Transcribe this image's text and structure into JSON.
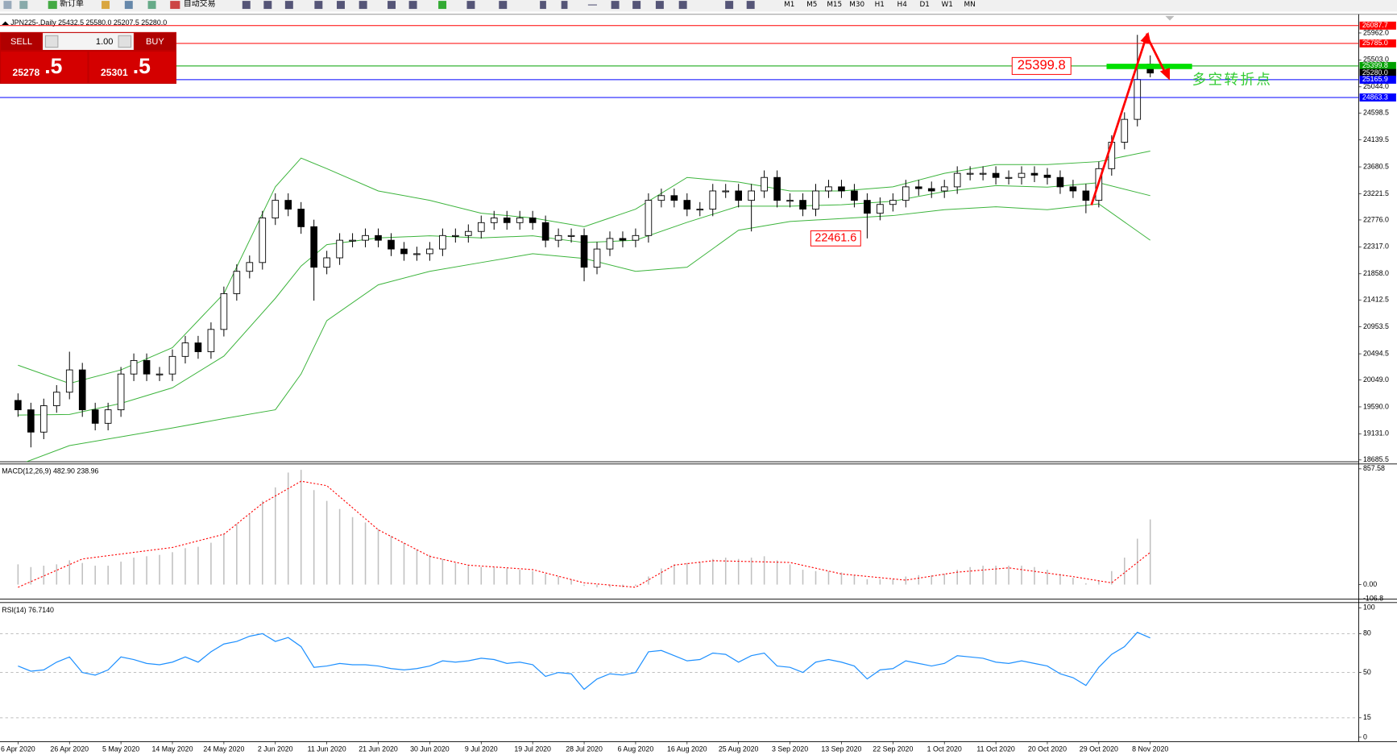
{
  "toolbar": {
    "new_order": "新订单",
    "auto_trading": "自动交易",
    "timeframes": [
      "M1",
      "M5",
      "M15",
      "M30",
      "H1",
      "H4",
      "D1",
      "W1",
      "MN"
    ]
  },
  "trade_panel": {
    "sell": "SELL",
    "buy": "BUY",
    "volume": "1.00",
    "sell_price": [
      "25278",
      ".5"
    ],
    "buy_price": [
      "25301",
      ".5"
    ]
  },
  "chart_data": [
    {
      "type": "candlestick",
      "title": "JPN225-,Daily  25432.5 25580.0 25207.5 25280.0",
      "up_color": "#ffffff",
      "down_color": "#000000",
      "line_color": "#000000",
      "open": [
        19700,
        19540,
        19160,
        19610,
        19840,
        20220,
        19540,
        19310,
        19540,
        20150,
        20380,
        20150,
        20150,
        20450,
        20680,
        20530,
        20910,
        21520,
        21900,
        22050,
        22810,
        23110,
        22960,
        22660,
        21970,
        22130,
        22430,
        22430,
        22510,
        22430,
        22280,
        22200,
        22200,
        22280,
        22510,
        22510,
        22580,
        22730,
        22810,
        22730,
        22810,
        22730,
        22430,
        22510,
        22510,
        21970,
        22280,
        22460,
        22430,
        22510,
        23110,
        23190,
        23110,
        22960,
        22960,
        23270,
        23270,
        23110,
        23270,
        23500,
        23110,
        23110,
        22960,
        23270,
        23340,
        23270,
        23110,
        22890,
        23040,
        23110,
        23340,
        23310,
        23270,
        23340,
        23570,
        23570,
        23570,
        23500,
        23500,
        23570,
        23540,
        23500,
        23340,
        23270,
        23110,
        23650,
        24100,
        24490,
        25432.5
      ],
      "high": [
        19820,
        19660,
        19730,
        19960,
        20530,
        20340,
        19660,
        19660,
        20270,
        20500,
        20500,
        20270,
        20570,
        20800,
        20800,
        21030,
        21640,
        22020,
        22170,
        22930,
        23230,
        23230,
        23080,
        22780,
        22250,
        22550,
        22550,
        22630,
        22630,
        22550,
        22400,
        22320,
        22400,
        22630,
        22630,
        22700,
        22850,
        22930,
        22930,
        22930,
        22930,
        22850,
        22630,
        22630,
        22630,
        22400,
        22580,
        22580,
        22630,
        23230,
        23310,
        23310,
        23230,
        23080,
        23390,
        23390,
        23390,
        23390,
        23620,
        23620,
        23230,
        23230,
        23390,
        23460,
        23460,
        23390,
        23230,
        23160,
        23230,
        23460,
        23460,
        23430,
        23460,
        23690,
        23690,
        23690,
        23690,
        23620,
        23690,
        23690,
        23660,
        23620,
        23460,
        23390,
        23770,
        24220,
        24610,
        25930,
        25580
      ],
      "low": [
        19420,
        18900,
        19040,
        19490,
        19720,
        19420,
        19190,
        19190,
        19420,
        20030,
        20030,
        20030,
        20030,
        20330,
        20410,
        20410,
        20790,
        21400,
        21780,
        21930,
        22690,
        22840,
        22540,
        21400,
        21850,
        22010,
        22310,
        22310,
        22310,
        22160,
        22080,
        22080,
        22080,
        22160,
        22390,
        22390,
        22460,
        22610,
        22610,
        22610,
        22610,
        22310,
        22310,
        22390,
        21730,
        21850,
        22160,
        22310,
        22310,
        22390,
        22990,
        22990,
        22840,
        22840,
        22840,
        23150,
        22990,
        22580,
        23150,
        22990,
        22990,
        22840,
        22840,
        23150,
        23150,
        22990,
        22461.6,
        22770,
        22920,
        22990,
        23190,
        23150,
        23150,
        23220,
        23450,
        23450,
        23380,
        23380,
        23380,
        23420,
        23380,
        23220,
        23150,
        22890,
        22990,
        23530,
        23980,
        24370,
        25207.5
      ],
      "close": [
        19540,
        19160,
        19610,
        19840,
        20220,
        19540,
        19310,
        19540,
        20150,
        20380,
        20150,
        20150,
        20450,
        20680,
        20530,
        20910,
        21520,
        21900,
        22050,
        22810,
        23110,
        22960,
        22660,
        21970,
        22130,
        22430,
        22430,
        22510,
        22430,
        22280,
        22200,
        22200,
        22280,
        22510,
        22510,
        22580,
        22730,
        22810,
        22730,
        22810,
        22730,
        22430,
        22510,
        22510,
        21970,
        22280,
        22460,
        22430,
        22510,
        23110,
        23190,
        23110,
        22960,
        22960,
        23270,
        23270,
        23110,
        23270,
        23500,
        23110,
        23110,
        22960,
        23270,
        23340,
        23270,
        23110,
        22890,
        23040,
        23110,
        23340,
        23310,
        23270,
        23340,
        23570,
        23570,
        23570,
        23500,
        23500,
        23570,
        23540,
        23500,
        23340,
        23270,
        23110,
        23650,
        24100,
        24490,
        25170,
        25280
      ],
      "overlays": [
        {
          "color": "#3cb43c",
          "x": [
            0,
            4,
            8,
            12,
            16,
            20,
            22,
            24,
            28,
            32,
            36,
            40,
            44,
            48,
            52,
            56,
            60,
            64,
            68,
            72,
            76,
            80,
            84,
            88
          ],
          "values": [
            20300,
            19990,
            20220,
            20600,
            21520,
            23340,
            23830,
            23650,
            23270,
            23110,
            22890,
            22810,
            22660,
            22960,
            23500,
            23420,
            23270,
            23270,
            23340,
            23570,
            23720,
            23720,
            23770,
            23950
          ]
        },
        {
          "color": "#3cb43c",
          "x": [
            0,
            4,
            8,
            12,
            16,
            20,
            22,
            24,
            28,
            32,
            36,
            40,
            44,
            48,
            52,
            56,
            60,
            64,
            68,
            72,
            76,
            80,
            84,
            88
          ],
          "values": [
            19450,
            19460,
            19650,
            19915,
            20455,
            21440,
            21990,
            22355,
            22470,
            22505,
            22470,
            22505,
            22390,
            22430,
            22735,
            23010,
            23010,
            23035,
            23095,
            23260,
            23360,
            23335,
            23410,
            23190
          ]
        },
        {
          "color": "#3cb43c",
          "x": [
            0,
            4,
            8,
            12,
            16,
            20,
            22,
            24,
            28,
            32,
            36,
            40,
            44,
            48,
            52,
            56,
            60,
            64,
            68,
            72,
            76,
            80,
            84,
            88
          ],
          "values": [
            18600,
            18930,
            19080,
            19230,
            19390,
            19540,
            20150,
            21060,
            21670,
            21900,
            22050,
            22200,
            22120,
            21900,
            21970,
            22600,
            22750,
            22800,
            22850,
            22950,
            23000,
            22950,
            23050,
            22430
          ]
        }
      ],
      "levels": [
        {
          "value": 26087.7,
          "color": "#ff0000"
        },
        {
          "value": 25785,
          "label": "25785.0",
          "color": "#ff0000"
        },
        {
          "value": 25399.8,
          "color": "#00a000"
        },
        {
          "value": 25280,
          "label": "25280.0",
          "color": "#000000",
          "show_line": false
        },
        {
          "value": 25165.9,
          "color": "#0000ff"
        },
        {
          "value": 24863.3,
          "color": "#0000ff"
        }
      ],
      "annotations": [
        {
          "value": 25399.8
        },
        {
          "value": 22461.6
        },
        {
          "text": "多空转折点"
        }
      ],
      "xlim": [
        -1.4,
        104.2
      ],
      "xticks": [
        {
          "value": 0,
          "label": "6 Apr 2020"
        },
        {
          "value": 4,
          "label": "26 Apr 2020"
        },
        {
          "value": 8,
          "label": "5 May 2020"
        },
        {
          "value": 12,
          "label": "14 May 2020"
        },
        {
          "value": 16,
          "label": "24 May 2020"
        },
        {
          "value": 20,
          "label": "2 Jun 2020"
        },
        {
          "value": 24,
          "label": "11 Jun 2020"
        },
        {
          "value": 28,
          "label": "21 Jun 2020"
        },
        {
          "value": 32,
          "label": "30 Jun 2020"
        },
        {
          "value": 36,
          "label": "9 Jul 2020"
        },
        {
          "value": 40,
          "label": "19 Jul 2020"
        },
        {
          "value": 44,
          "label": "28 Jul 2020"
        },
        {
          "value": 48,
          "label": "6 Aug 2020"
        },
        {
          "value": 52,
          "label": "16 Aug 2020"
        },
        {
          "value": 56,
          "label": "25 Aug 2020"
        },
        {
          "value": 60,
          "label": "3 Sep 2020"
        },
        {
          "value": 64,
          "label": "13 Sep 2020"
        },
        {
          "value": 68,
          "label": "22 Sep 2020"
        },
        {
          "value": 72,
          "label": "1 Oct 2020"
        },
        {
          "value": 76,
          "label": "11 Oct 2020"
        },
        {
          "value": 80,
          "label": "20 Oct 2020"
        },
        {
          "value": 84,
          "label": "29 Oct 2020"
        },
        {
          "value": 88,
          "label": "8 Nov 2020"
        }
      ],
      "ylim": [
        18655,
        26266
      ],
      "yticks": [
        {
          "value": 25962,
          "label": "25962.0"
        },
        {
          "value": 25503,
          "label": "25503.0"
        },
        {
          "value": 25044,
          "label": "25044.0"
        },
        24598.5,
        24139.5,
        23680.5,
        23221.5,
        {
          "value": 22776,
          "label": "22776.0"
        },
        {
          "value": 22317,
          "label": "22317.0"
        },
        {
          "value": 21858,
          "label": "21858.0"
        },
        21412.5,
        20953.5,
        20494.5,
        {
          "value": 20049,
          "label": "20049.0"
        },
        {
          "value": 19590,
          "label": "19590.0"
        },
        {
          "value": 19131,
          "label": "19131.0"
        },
        18685.5
      ]
    },
    {
      "type": "bar",
      "title": "MACD(12,26,9) 482.90 238.96",
      "color": "#c0c0c0",
      "values": [
        150,
        130,
        140,
        150,
        180,
        160,
        140,
        140,
        170,
        200,
        210,
        220,
        240,
        270,
        280,
        310,
        380,
        450,
        520,
        620,
        720,
        830,
        850,
        700,
        620,
        560,
        500,
        460,
        410,
        360,
        310,
        260,
        220,
        190,
        160,
        140,
        130,
        130,
        120,
        110,
        100,
        80,
        60,
        40,
        -10,
        -20,
        -20,
        -20,
        -10,
        60,
        120,
        150,
        160,
        170,
        190,
        200,
        190,
        200,
        210,
        180,
        150,
        110,
        100,
        100,
        90,
        70,
        40,
        40,
        40,
        60,
        70,
        70,
        80,
        110,
        130,
        140,
        140,
        140,
        140,
        130,
        110,
        80,
        50,
        10,
        30,
        100,
        200,
        340,
        482.9
      ],
      "signal": {
        "color": "#ff0000",
        "x": [
          0,
          5,
          12,
          16,
          19,
          22,
          24,
          28,
          32,
          35,
          40,
          44,
          48,
          51,
          54,
          60,
          64,
          69,
          73,
          77,
          82,
          85,
          88
        ],
        "values": [
          -20,
          190,
          275,
          373,
          602,
          766,
          733,
          406,
          209,
          144,
          111,
          13,
          -20,
          144,
          177,
          164,
          79,
          33,
          92,
          124,
          59,
          13,
          238.96
        ]
      },
      "ylim": [
        -106.8,
        897
      ],
      "yticks": [
        857.58,
        {
          "value": 0,
          "label": "0.00"
        },
        -106.8
      ]
    },
    {
      "type": "line",
      "title": "RSI(14) 76.7140",
      "color": "#1e90ff",
      "values": [
        55,
        51,
        52,
        58,
        62,
        50,
        48,
        52,
        62,
        60,
        57,
        56,
        58,
        62,
        58,
        66,
        72,
        74,
        78,
        80,
        74,
        77,
        70,
        54,
        55,
        57,
        56,
        56,
        55,
        53,
        52,
        53,
        55,
        59,
        58,
        59,
        61,
        60,
        57,
        58,
        56,
        47,
        50,
        49,
        37,
        45,
        49,
        48,
        50,
        66,
        67,
        63,
        59,
        60,
        65,
        64,
        58,
        63,
        65,
        55,
        54,
        50,
        58,
        60,
        58,
        55,
        45,
        52,
        53,
        59,
        57,
        55,
        57,
        63,
        62,
        61,
        58,
        57,
        59,
        57,
        55,
        49,
        46,
        40,
        54,
        64,
        70,
        81,
        76.714
      ],
      "levels": [
        80,
        50,
        15
      ],
      "ylim": [
        -3.4,
        104
      ],
      "yticks": [
        100,
        80,
        50,
        15,
        0
      ]
    }
  ]
}
